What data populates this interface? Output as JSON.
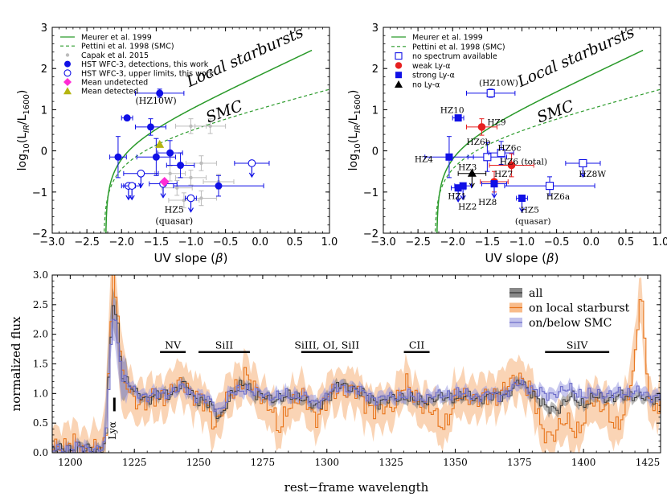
{
  "chart_data": [
    {
      "type": "scatter",
      "panel": "top-left",
      "xlabel": "UV slope (β)",
      "ylabel": "log10(L_IR/L_1600)",
      "xlim": [
        -3.0,
        1.0
      ],
      "ylim": [
        -2,
        3
      ],
      "xticks": [
        "−3.0",
        "−2.5",
        "−2.0",
        "−1.5",
        "−1.0",
        "−0.5",
        "0.0",
        "0.5",
        "1.0"
      ],
      "yticks": [
        "−2",
        "−1",
        "0",
        "1",
        "2",
        "3"
      ],
      "legend": [
        "Meurer et al. 1999",
        "Pettini et al. 1998 (SMC)",
        "Capak et al. 2015",
        "HST WFC-3, detections, this work",
        "HST WFC-3, upper limits, this work",
        "Mean undetected",
        "Mean detected"
      ],
      "curve_labels": [
        "Local starbursts",
        "SMC"
      ],
      "point_labels": [
        "(HZ10W)",
        "HZ5",
        "(quasar)"
      ],
      "detections": [
        {
          "x": -1.45,
          "y": 1.4,
          "xerr": 0.35,
          "yerr": 0.1
        },
        {
          "x": -1.92,
          "y": 0.8,
          "xerr": 0.08,
          "yerr": 0.05
        },
        {
          "x": -1.58,
          "y": 0.58,
          "xerr": 0.22,
          "yerr": 0.2
        },
        {
          "x": -2.05,
          "y": -0.15,
          "xerr": 0.12,
          "yerr": 0.5
        },
        {
          "x": -1.5,
          "y": -0.15,
          "xerr": 0.28,
          "yerr": 0.45
        },
        {
          "x": -1.3,
          "y": -0.05,
          "xerr": 0.18,
          "yerr": 0.3
        },
        {
          "x": -1.15,
          "y": -0.35,
          "xerr": 0.2,
          "yerr": 0.3
        },
        {
          "x": -0.6,
          "y": -0.85,
          "xerr": 0.65,
          "yerr": 0.25
        }
      ],
      "upper_limits": [
        {
          "x": -1.72,
          "y": -0.55,
          "xerr": 0.25
        },
        {
          "x": -1.9,
          "y": -0.85,
          "xerr": 0.1
        },
        {
          "x": -1.85,
          "y": -0.85,
          "xerr": 0.12
        },
        {
          "x": -1.4,
          "y": -0.8,
          "xerr": 0.2
        },
        {
          "x": -1.0,
          "y": -1.15,
          "xerr": 0.08
        },
        {
          "x": -0.12,
          "y": -0.3,
          "xerr": 0.25
        }
      ],
      "capak": [
        {
          "x": -1.0,
          "y": 0.6
        },
        {
          "x": -0.72,
          "y": 0.6
        },
        {
          "x": -0.85,
          "y": -0.3
        },
        {
          "x": -1.3,
          "y": -0.55
        },
        {
          "x": -1.0,
          "y": -0.65
        },
        {
          "x": -0.6,
          "y": -0.75
        },
        {
          "x": -1.2,
          "y": -0.9
        },
        {
          "x": -0.85,
          "y": -1.15
        },
        {
          "x": -1.1,
          "y": -1.2
        }
      ],
      "mean_undetected": {
        "x": -1.38,
        "y": -0.75
      },
      "mean_detected": {
        "x": -1.45,
        "y": 0.15
      }
    },
    {
      "type": "scatter",
      "panel": "top-right",
      "xlabel": "UV slope (β)",
      "ylabel": "log10(L_IR/L_1600)",
      "xlim": [
        -3.0,
        1.0
      ],
      "ylim": [
        -2,
        3
      ],
      "xticks": [
        "−3.0",
        "−2.5",
        "−2.0",
        "−1.5",
        "−1.0",
        "−0.5",
        "0.0",
        "0.5",
        "1.0"
      ],
      "yticks": [
        "−2",
        "−1",
        "0",
        "1",
        "2",
        "3"
      ],
      "legend": [
        "Meurer et al. 1999",
        "Pettini et al. 1998 (SMC)",
        "no spectrum available",
        "weak Ly-α",
        "strong Ly-α",
        "no Ly-α"
      ],
      "curve_labels": [
        "Local starbursts",
        "SMC"
      ],
      "points": [
        {
          "label": "(HZ10W)",
          "cat": "nospec",
          "x": -1.45,
          "y": 1.4
        },
        {
          "label": "HZ10",
          "cat": "strong",
          "x": -1.92,
          "y": 0.8
        },
        {
          "label": "HZ9",
          "cat": "weak",
          "x": -1.58,
          "y": 0.58
        },
        {
          "label": "HZ4",
          "cat": "strong",
          "x": -2.05,
          "y": -0.15
        },
        {
          "label": "HZ6b",
          "cat": "nospec",
          "x": -1.5,
          "y": -0.15
        },
        {
          "label": "HZ6c",
          "cat": "nospec",
          "x": -1.3,
          "y": -0.05
        },
        {
          "label": "HZ6 (total)",
          "cat": "weak",
          "x": -1.15,
          "y": -0.35
        },
        {
          "label": "HZ3",
          "cat": "noly",
          "x": -1.72,
          "y": -0.55
        },
        {
          "label": "HZ7",
          "cat": "weak",
          "x": -1.4,
          "y": -0.75
        },
        {
          "label": "HZ1",
          "cat": "strong",
          "x": -1.92,
          "y": -0.9
        },
        {
          "label": "HZ2",
          "cat": "strong",
          "x": -1.85,
          "y": -0.85
        },
        {
          "label": "HZ8",
          "cat": "strong",
          "x": -1.4,
          "y": -0.8
        },
        {
          "label": "HZ5",
          "cat": "strong",
          "x": -1.0,
          "y": -1.15
        },
        {
          "label": "HZ8W",
          "cat": "nospec",
          "x": -0.12,
          "y": -0.3
        },
        {
          "label": "HZ6a",
          "cat": "nospec",
          "x": -0.6,
          "y": -0.85
        }
      ],
      "extra_labels": [
        "(quasar)"
      ]
    },
    {
      "type": "line",
      "panel": "bottom",
      "xlabel": "rest−frame wavelength",
      "ylabel": "normalized flux",
      "xlim": [
        1193,
        1430
      ],
      "ylim": [
        0.0,
        3.0
      ],
      "xticks": [
        "1200",
        "1225",
        "1250",
        "1275",
        "1300",
        "1325",
        "1350",
        "1375",
        "1400",
        "1425"
      ],
      "yticks": [
        "0.0",
        "0.5",
        "1.0",
        "1.5",
        "2.0",
        "2.5",
        "3.0"
      ],
      "legend": [
        "all",
        "on local starburst",
        "on/below SMC"
      ],
      "lines": [
        {
          "label": "Lyα",
          "x0": 1216,
          "x1": 1216
        },
        {
          "label": "NV",
          "x0": 1235,
          "x1": 1245
        },
        {
          "label": "SiII",
          "x0": 1250,
          "x1": 1270
        },
        {
          "label": "SiIII, OI, SiII",
          "x0": 1290,
          "x1": 1310
        },
        {
          "label": "CII",
          "x0": 1330,
          "x1": 1340
        },
        {
          "label": "SiIV",
          "x0": 1385,
          "x1": 1410
        }
      ],
      "series": [
        {
          "name": "all",
          "color": "#444444",
          "knots": [
            [
              1193,
              0.05
            ],
            [
              1205,
              0.08
            ],
            [
              1212,
              0.05
            ],
            [
              1214,
              0.35
            ],
            [
              1215,
              1.7
            ],
            [
              1216.5,
              2.55
            ],
            [
              1218,
              2.2
            ],
            [
              1220,
              1.3
            ],
            [
              1225,
              1.0
            ],
            [
              1230,
              0.92
            ],
            [
              1238,
              1.0
            ],
            [
              1244,
              1.15
            ],
            [
              1248,
              0.95
            ],
            [
              1253,
              0.85
            ],
            [
              1258,
              0.6
            ],
            [
              1262,
              0.95
            ],
            [
              1268,
              1.2
            ],
            [
              1272,
              0.95
            ],
            [
              1280,
              0.92
            ],
            [
              1290,
              0.95
            ],
            [
              1295,
              0.75
            ],
            [
              1300,
              0.95
            ],
            [
              1305,
              1.15
            ],
            [
              1310,
              1.1
            ],
            [
              1315,
              0.95
            ],
            [
              1320,
              0.85
            ],
            [
              1325,
              0.9
            ],
            [
              1330,
              0.95
            ],
            [
              1335,
              0.85
            ],
            [
              1340,
              0.9
            ],
            [
              1350,
              0.95
            ],
            [
              1360,
              0.92
            ],
            [
              1370,
              1.0
            ],
            [
              1375,
              1.2
            ],
            [
              1380,
              1.0
            ],
            [
              1385,
              0.75
            ],
            [
              1390,
              0.75
            ],
            [
              1395,
              0.95
            ],
            [
              1400,
              0.82
            ],
            [
              1405,
              0.95
            ],
            [
              1410,
              0.92
            ],
            [
              1415,
              0.95
            ],
            [
              1420,
              0.98
            ],
            [
              1425,
              0.88
            ],
            [
              1430,
              0.95
            ]
          ]
        },
        {
          "name": "on local starburst",
          "color": "#ff8c1a",
          "knots": [
            [
              1193,
              0.1
            ],
            [
              1200,
              0.15
            ],
            [
              1205,
              0.05
            ],
            [
              1210,
              0.1
            ],
            [
              1213,
              0.05
            ],
            [
              1214,
              0.5
            ],
            [
              1215,
              2.0
            ],
            [
              1216.5,
              3.0
            ],
            [
              1218,
              2.5
            ],
            [
              1220,
              1.2
            ],
            [
              1225,
              0.9
            ],
            [
              1230,
              0.85
            ],
            [
              1238,
              1.0
            ],
            [
              1244,
              1.2
            ],
            [
              1248,
              1.0
            ],
            [
              1253,
              0.75
            ],
            [
              1256,
              0.5
            ],
            [
              1262,
              0.95
            ],
            [
              1268,
              1.35
            ],
            [
              1272,
              1.0
            ],
            [
              1278,
              0.8
            ],
            [
              1281,
              0.3
            ],
            [
              1285,
              0.85
            ],
            [
              1290,
              0.95
            ],
            [
              1295,
              0.6
            ],
            [
              1300,
              0.9
            ],
            [
              1305,
              1.1
            ],
            [
              1310,
              1.05
            ],
            [
              1315,
              0.85
            ],
            [
              1320,
              0.7
            ],
            [
              1325,
              0.8
            ],
            [
              1330,
              1.15
            ],
            [
              1335,
              0.9
            ],
            [
              1340,
              0.7
            ],
            [
              1345,
              0.45
            ],
            [
              1350,
              0.9
            ],
            [
              1355,
              0.95
            ],
            [
              1360,
              0.9
            ],
            [
              1365,
              1.0
            ],
            [
              1370,
              1.1
            ],
            [
              1375,
              1.3
            ],
            [
              1380,
              1.0
            ],
            [
              1383,
              0.4
            ],
            [
              1388,
              0.3
            ],
            [
              1393,
              0.55
            ],
            [
              1398,
              0.35
            ],
            [
              1403,
              0.9
            ],
            [
              1408,
              0.8
            ],
            [
              1412,
              0.35
            ],
            [
              1416,
              0.8
            ],
            [
              1420,
              1.6
            ],
            [
              1422,
              2.9
            ],
            [
              1424,
              1.4
            ],
            [
              1427,
              0.7
            ],
            [
              1430,
              0.9
            ]
          ]
        },
        {
          "name": "on/below SMC",
          "color": "#7070c8",
          "knots": [
            [
              1193,
              0.05
            ],
            [
              1205,
              0.08
            ],
            [
              1212,
              0.05
            ],
            [
              1214,
              0.35
            ],
            [
              1215,
              1.6
            ],
            [
              1216.5,
              2.35
            ],
            [
              1218,
              2.0
            ],
            [
              1220,
              1.25
            ],
            [
              1225,
              1.02
            ],
            [
              1230,
              0.95
            ],
            [
              1238,
              1.02
            ],
            [
              1244,
              1.1
            ],
            [
              1248,
              0.98
            ],
            [
              1253,
              0.9
            ],
            [
              1258,
              0.72
            ],
            [
              1262,
              0.98
            ],
            [
              1268,
              1.1
            ],
            [
              1272,
              1.0
            ],
            [
              1280,
              0.95
            ],
            [
              1290,
              0.98
            ],
            [
              1295,
              0.82
            ],
            [
              1300,
              0.98
            ],
            [
              1305,
              1.12
            ],
            [
              1310,
              1.08
            ],
            [
              1315,
              0.98
            ],
            [
              1320,
              0.9
            ],
            [
              1325,
              0.95
            ],
            [
              1330,
              0.97
            ],
            [
              1335,
              0.92
            ],
            [
              1340,
              0.95
            ],
            [
              1350,
              1.0
            ],
            [
              1360,
              0.95
            ],
            [
              1370,
              1.0
            ],
            [
              1375,
              1.2
            ],
            [
              1380,
              1.05
            ],
            [
              1385,
              0.98
            ],
            [
              1390,
              1.02
            ],
            [
              1395,
              1.08
            ],
            [
              1400,
              0.95
            ],
            [
              1405,
              1.02
            ],
            [
              1410,
              0.98
            ],
            [
              1415,
              1.0
            ],
            [
              1420,
              1.05
            ],
            [
              1425,
              0.95
            ],
            [
              1430,
              0.98
            ]
          ]
        }
      ]
    }
  ]
}
